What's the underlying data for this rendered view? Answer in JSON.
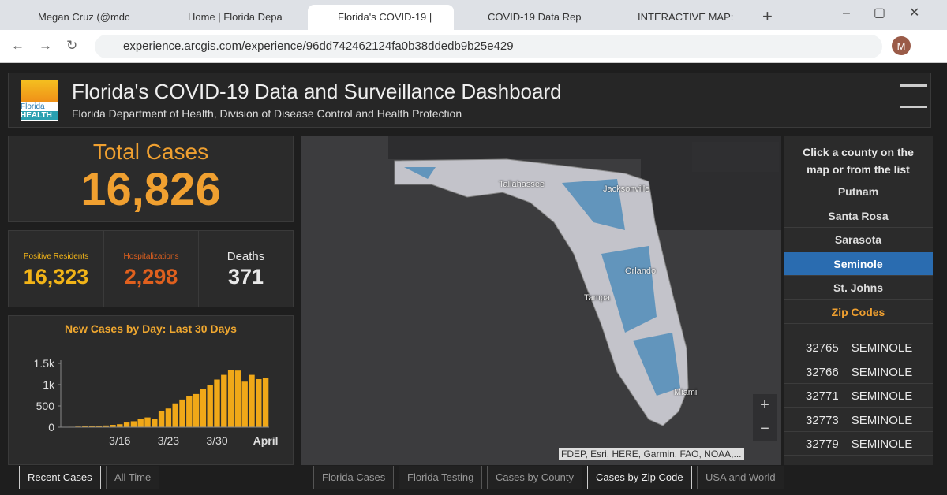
{
  "browser": {
    "tabs": [
      "Megan Cruz (@mdc",
      "Home | Florida Depa",
      "Florida's COVID-19 |",
      "COVID-19 Data Rep",
      "INTERACTIVE MAP:"
    ],
    "active_tab": 2,
    "url": "experience.arcgis.com/experience/96dd742462124fa0b38ddedb9b25e429",
    "profile": "M"
  },
  "header": {
    "logo_text": [
      "Florida",
      "HEALTH"
    ],
    "title": "Florida's COVID-19 Data and Surveillance Dashboard",
    "subtitle": "Florida Department of Health, Division of Disease Control and Health Protection"
  },
  "total_cases": {
    "label": "Total Cases",
    "value": "16,826"
  },
  "stats": [
    {
      "label": "Positive Residents",
      "value": "16,323",
      "color": "#f2b418"
    },
    {
      "label": "Hospitalizations",
      "value": "2,298",
      "color": "#e0601e"
    },
    {
      "label": "Deaths",
      "value": "371",
      "color": "#e8e8e8"
    }
  ],
  "chart_data": {
    "type": "bar",
    "title": "New Cases by Day: Last 30 Days",
    "color": "#f0a818",
    "categories": [
      null,
      null,
      null,
      null,
      null,
      null,
      null,
      null,
      "3/16",
      null,
      null,
      null,
      null,
      null,
      null,
      "3/23",
      null,
      null,
      null,
      null,
      null,
      null,
      "3/30",
      null,
      null,
      null,
      null,
      null,
      null,
      "April"
    ],
    "values": [
      5,
      10,
      15,
      20,
      25,
      30,
      40,
      55,
      70,
      110,
      140,
      190,
      230,
      200,
      380,
      440,
      560,
      650,
      740,
      780,
      890,
      1000,
      1120,
      1230,
      1350,
      1330,
      1070,
      1230,
      1130,
      1150
    ],
    "ylim": [
      0,
      1500
    ],
    "yticks": [
      0,
      500,
      {
        "value": 1000,
        "label": "1k"
      },
      {
        "value": 1500,
        "label": "1.5k"
      }
    ],
    "grid": false
  },
  "left_tabs": [
    "Recent Cases",
    "All Time"
  ],
  "left_active": 0,
  "map": {
    "cities": [
      "Tallahassee",
      "Jacksonville",
      "Orlando",
      "Tampa",
      "Miami"
    ],
    "attribution": "FDEP, Esri, HERE, Garmin, FAO, NOAA,..."
  },
  "map_tabs": [
    "Florida Cases",
    "Florida Testing",
    "Cases by County",
    "Cases by Zip Code",
    "USA and World"
  ],
  "map_active": 3,
  "list": {
    "prompt": "Click a county on the map or from the list",
    "counties": [
      "Putnam",
      "Santa Rosa",
      "Sarasota",
      "Seminole",
      "St. Johns"
    ],
    "selected": 3,
    "section": "Zip Codes",
    "zips": [
      [
        "32765",
        "SEMINOLE"
      ],
      [
        "32766",
        "SEMINOLE"
      ],
      [
        "32771",
        "SEMINOLE"
      ],
      [
        "32773",
        "SEMINOLE"
      ],
      [
        "32779",
        "SEMINOLE"
      ]
    ]
  }
}
